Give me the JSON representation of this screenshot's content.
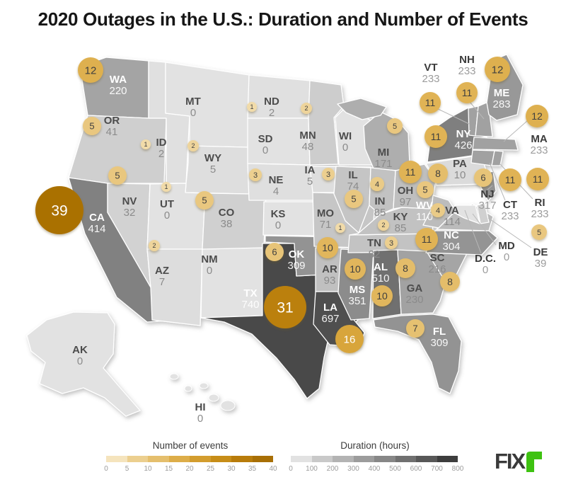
{
  "title": "2020 Outages in the U.S.: Duration and Number of Events",
  "logo": {
    "text": "FIX",
    "accent_letter": "r",
    "accent_color": "#3ec211",
    "text_color": "#3a3a3a"
  },
  "chart_data": {
    "type": "heatmap",
    "subtype": "us-choropleth-with-proportional-symbols",
    "title": "2020 Outages in the U.S.: Duration and Number of Events",
    "legends": [
      {
        "id": "events",
        "title": "Number of events",
        "ticks": [
          "0",
          "5",
          "10",
          "15",
          "20",
          "25",
          "30",
          "35",
          "40"
        ],
        "min": 0,
        "max": 40,
        "colors": [
          "#f5e4bd",
          "#eccf8f",
          "#e5bf6d",
          "#ddad49",
          "#d39d2e",
          "#c78d18",
          "#b87c0b",
          "#a86f05"
        ]
      },
      {
        "id": "duration",
        "title": "Duration (hours)",
        "ticks": [
          "0",
          "100",
          "200",
          "300",
          "400",
          "500",
          "600",
          "700",
          "800"
        ],
        "min": 0,
        "max": 800,
        "colors": [
          "#e2e2e2",
          "#c9c9c9",
          "#b3b3b3",
          "#9c9c9c",
          "#878787",
          "#707070",
          "#585858",
          "#3d3d3d"
        ]
      }
    ],
    "states": [
      {
        "abbr": "WA",
        "duration_hours": 220,
        "events": 12
      },
      {
        "abbr": "OR",
        "duration_hours": 41,
        "events": 5
      },
      {
        "abbr": "CA",
        "duration_hours": 414,
        "events": 39
      },
      {
        "abbr": "NV",
        "duration_hours": 32,
        "events": 5
      },
      {
        "abbr": "ID",
        "duration_hours": 2,
        "events": 1
      },
      {
        "abbr": "MT",
        "duration_hours": 0,
        "events": 0
      },
      {
        "abbr": "WY",
        "duration_hours": 5,
        "events": 2
      },
      {
        "abbr": "UT",
        "duration_hours": 0,
        "events": 1
      },
      {
        "abbr": "AZ",
        "duration_hours": 7,
        "events": 2
      },
      {
        "abbr": "NM",
        "duration_hours": 0,
        "events": 0
      },
      {
        "abbr": "CO",
        "duration_hours": 38,
        "events": 5
      },
      {
        "abbr": "ND",
        "duration_hours": 2,
        "events": 1
      },
      {
        "abbr": "SD",
        "duration_hours": 0,
        "events": 0
      },
      {
        "abbr": "NE",
        "duration_hours": 4,
        "events": 3
      },
      {
        "abbr": "KS",
        "duration_hours": 0,
        "events": 0
      },
      {
        "abbr": "MN",
        "duration_hours": 48,
        "events": 2
      },
      {
        "abbr": "IA",
        "duration_hours": 5,
        "events": 3
      },
      {
        "abbr": "MO",
        "duration_hours": 71,
        "events": 1
      },
      {
        "abbr": "WI",
        "duration_hours": 0,
        "events": 0
      },
      {
        "abbr": "IL",
        "duration_hours": 74,
        "events": 5
      },
      {
        "abbr": "IN",
        "duration_hours": 85,
        "events": 4
      },
      {
        "abbr": "MI",
        "duration_hours": 171,
        "events": 5
      },
      {
        "abbr": "OH",
        "duration_hours": 97,
        "events": 11
      },
      {
        "abbr": "KY",
        "duration_hours": 85,
        "events": 2
      },
      {
        "abbr": "TN",
        "duration_hours": 82,
        "events": 3
      },
      {
        "abbr": "AR",
        "duration_hours": 93,
        "events": 10
      },
      {
        "abbr": "OK",
        "duration_hours": 309,
        "events": 6
      },
      {
        "abbr": "TX",
        "duration_hours": 740,
        "events": 31
      },
      {
        "abbr": "LA",
        "duration_hours": 697,
        "events": 16
      },
      {
        "abbr": "MS",
        "duration_hours": 351,
        "events": 10
      },
      {
        "abbr": "AL",
        "duration_hours": 510,
        "events": 10
      },
      {
        "abbr": "GA",
        "duration_hours": 230,
        "events": 8
      },
      {
        "abbr": "FL",
        "duration_hours": 309,
        "events": 7
      },
      {
        "abbr": "SC",
        "duration_hours": 216,
        "events": 8
      },
      {
        "abbr": "NC",
        "duration_hours": 304,
        "events": 11
      },
      {
        "abbr": "VA",
        "duration_hours": 114,
        "events": 4
      },
      {
        "abbr": "WV",
        "duration_hours": 110,
        "events": 5
      },
      {
        "abbr": "PA",
        "duration_hours": 10,
        "events": 8
      },
      {
        "abbr": "NY",
        "duration_hours": 426,
        "events": 11
      },
      {
        "abbr": "NJ",
        "duration_hours": 317,
        "events": 6
      },
      {
        "abbr": "DE",
        "duration_hours": 39,
        "events": 5
      },
      {
        "abbr": "MD",
        "duration_hours": 0,
        "events": 0
      },
      {
        "abbr": "D.C.",
        "duration_hours": 0,
        "events": 0
      },
      {
        "abbr": "CT",
        "duration_hours": 233,
        "events": 11
      },
      {
        "abbr": "RI",
        "duration_hours": 233,
        "events": 11
      },
      {
        "abbr": "MA",
        "duration_hours": 233,
        "events": 12
      },
      {
        "abbr": "VT",
        "duration_hours": 233,
        "events": 11
      },
      {
        "abbr": "NH",
        "duration_hours": 233,
        "events": 11
      },
      {
        "abbr": "ME",
        "duration_hours": 283,
        "events": 12
      },
      {
        "abbr": "AK",
        "duration_hours": 0,
        "events": 0
      },
      {
        "abbr": "HI",
        "duration_hours": 0,
        "events": 0
      }
    ]
  }
}
